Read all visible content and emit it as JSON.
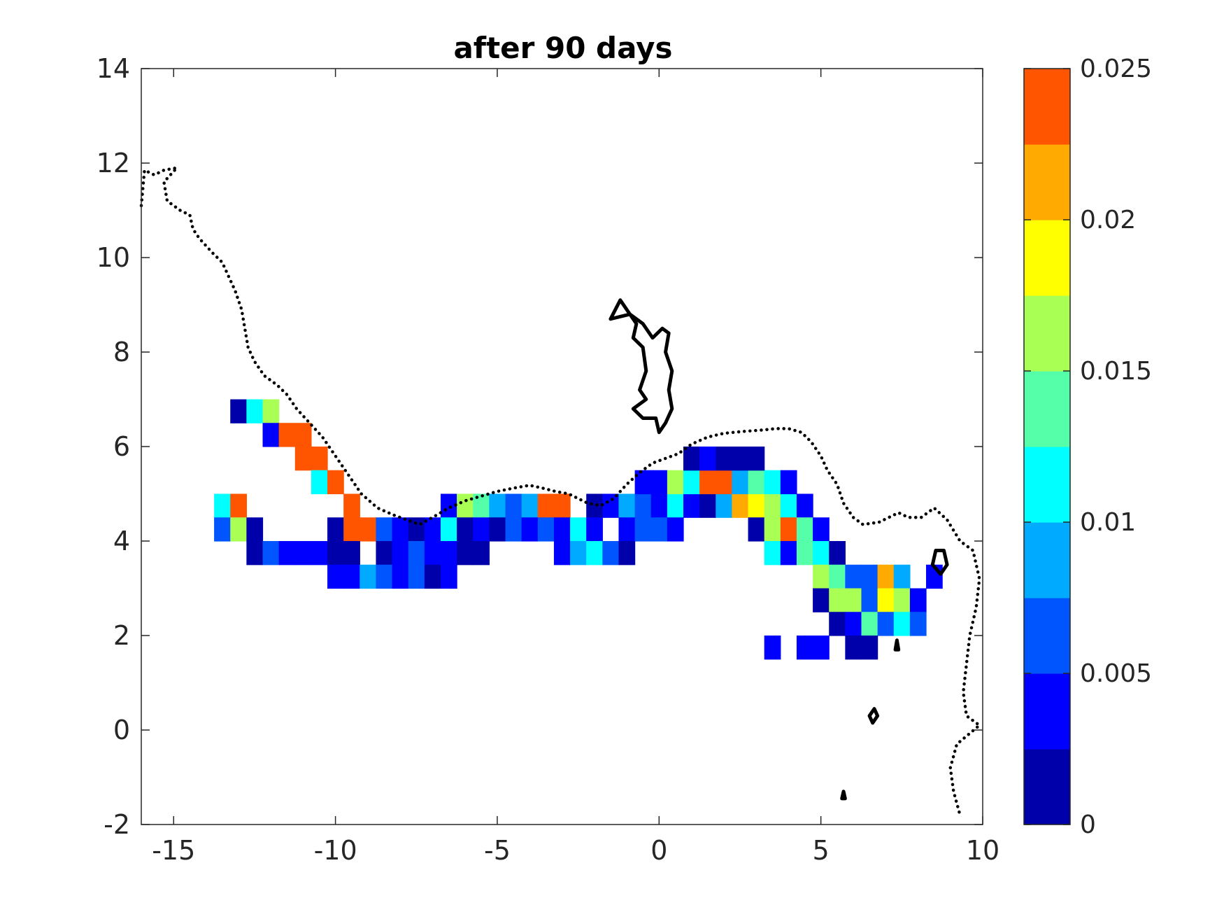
{
  "chart_data": {
    "type": "heatmap",
    "title": "after 90 days",
    "xlabel": "",
    "ylabel": "",
    "xlim": [
      -16,
      10
    ],
    "ylim": [
      -2,
      14
    ],
    "x_ticks": [
      "-15",
      "-10",
      "-5",
      "0",
      "5",
      "10"
    ],
    "y_ticks": [
      "-2",
      "0",
      "2",
      "4",
      "6",
      "8",
      "10",
      "12",
      "14"
    ],
    "cell_size": 0.5,
    "colormap": {
      "levels": [
        "#0000aa",
        "#0000ff",
        "#0055ff",
        "#00aaff",
        "#00ffff",
        "#55ffaa",
        "#aaff55",
        "#ffff00",
        "#ffaa00",
        "#ff5500"
      ],
      "range": [
        0,
        0.025
      ],
      "tick_labels": [
        "0",
        "0.005",
        "0.01",
        "0.015",
        "0.02",
        "0.025"
      ]
    },
    "cells": [
      {
        "x": -13,
        "y": 6.75,
        "v": 0.001
      },
      {
        "x": -12.5,
        "y": 6.75,
        "v": 0.011
      },
      {
        "x": -12,
        "y": 6.75,
        "v": 0.016
      },
      {
        "x": -12,
        "y": 6.25,
        "v": 0.004
      },
      {
        "x": -11.5,
        "y": 6.25,
        "v": 0.024
      },
      {
        "x": -11,
        "y": 6.25,
        "v": 0.024
      },
      {
        "x": -11,
        "y": 5.75,
        "v": 0.024
      },
      {
        "x": -10.5,
        "y": 5.75,
        "v": 0.024
      },
      {
        "x": -10.5,
        "y": 5.25,
        "v": 0.011
      },
      {
        "x": -10,
        "y": 5.25,
        "v": 0.024
      },
      {
        "x": -13.5,
        "y": 4.75,
        "v": 0.011
      },
      {
        "x": -13,
        "y": 4.75,
        "v": 0.024
      },
      {
        "x": -9.5,
        "y": 4.75,
        "v": 0.024
      },
      {
        "x": -6.5,
        "y": 4.75,
        "v": 0.004
      },
      {
        "x": -6,
        "y": 4.75,
        "v": 0.016
      },
      {
        "x": -5.5,
        "y": 4.75,
        "v": 0.014
      },
      {
        "x": -5,
        "y": 4.75,
        "v": 0.009
      },
      {
        "x": -4.5,
        "y": 4.75,
        "v": 0.006
      },
      {
        "x": -4,
        "y": 4.75,
        "v": 0.009
      },
      {
        "x": -3.5,
        "y": 4.75,
        "v": 0.024
      },
      {
        "x": -3,
        "y": 4.75,
        "v": 0.024
      },
      {
        "x": -2,
        "y": 4.75,
        "v": 0.001
      },
      {
        "x": -1.5,
        "y": 4.75,
        "v": 0.004
      },
      {
        "x": -1,
        "y": 4.75,
        "v": 0.009
      },
      {
        "x": -0.5,
        "y": 4.75,
        "v": 0.006
      },
      {
        "x": 0,
        "y": 4.75,
        "v": 0.004
      },
      {
        "x": 0.5,
        "y": 4.75,
        "v": 0.011
      },
      {
        "x": 1,
        "y": 4.75,
        "v": 0.004
      },
      {
        "x": 1.5,
        "y": 4.75,
        "v": 0.001
      },
      {
        "x": 2,
        "y": 4.75,
        "v": 0.009
      },
      {
        "x": 2.5,
        "y": 4.75,
        "v": 0.021
      },
      {
        "x": 3,
        "y": 4.75,
        "v": 0.019
      },
      {
        "x": 3.5,
        "y": 4.75,
        "v": 0.016
      },
      {
        "x": 4,
        "y": 4.75,
        "v": 0.011
      },
      {
        "x": 4.5,
        "y": 4.75,
        "v": 0.004
      },
      {
        "x": -13.5,
        "y": 4.25,
        "v": 0.006
      },
      {
        "x": -13,
        "y": 4.25,
        "v": 0.016
      },
      {
        "x": -12.5,
        "y": 4.25,
        "v": 0.001
      },
      {
        "x": -10,
        "y": 4.25,
        "v": 0.001
      },
      {
        "x": -9.5,
        "y": 4.25,
        "v": 0.024
      },
      {
        "x": -9,
        "y": 4.25,
        "v": 0.024
      },
      {
        "x": -8.5,
        "y": 4.25,
        "v": 0.006
      },
      {
        "x": -8,
        "y": 4.25,
        "v": 0.004
      },
      {
        "x": -7.5,
        "y": 4.25,
        "v": 0.001
      },
      {
        "x": -7,
        "y": 4.25,
        "v": 0.004
      },
      {
        "x": -6.5,
        "y": 4.25,
        "v": 0.011
      },
      {
        "x": -6,
        "y": 4.25,
        "v": 0.001
      },
      {
        "x": -5.5,
        "y": 4.25,
        "v": 0.004
      },
      {
        "x": -5,
        "y": 4.25,
        "v": 0.001
      },
      {
        "x": -4.5,
        "y": 4.25,
        "v": 0.006
      },
      {
        "x": -4,
        "y": 4.25,
        "v": 0.004
      },
      {
        "x": -3.5,
        "y": 4.25,
        "v": 0.006
      },
      {
        "x": -3,
        "y": 4.25,
        "v": 0.004
      },
      {
        "x": -2.5,
        "y": 4.25,
        "v": 0.011
      },
      {
        "x": -2,
        "y": 4.25,
        "v": 0.004
      },
      {
        "x": -1,
        "y": 4.25,
        "v": 0.004
      },
      {
        "x": -0.5,
        "y": 4.25,
        "v": 0.006
      },
      {
        "x": 0,
        "y": 4.25,
        "v": 0.006
      },
      {
        "x": 0.5,
        "y": 4.25,
        "v": 0.004
      },
      {
        "x": 3,
        "y": 4.25,
        "v": 0.001
      },
      {
        "x": 3.5,
        "y": 4.25,
        "v": 0.016
      },
      {
        "x": 4,
        "y": 4.25,
        "v": 0.024
      },
      {
        "x": 4.5,
        "y": 4.25,
        "v": 0.014
      },
      {
        "x": 5,
        "y": 4.25,
        "v": 0.004
      },
      {
        "x": -12.5,
        "y": 3.75,
        "v": 0.001
      },
      {
        "x": -12,
        "y": 3.75,
        "v": 0.006
      },
      {
        "x": -11.5,
        "y": 3.75,
        "v": 0.004
      },
      {
        "x": -11,
        "y": 3.75,
        "v": 0.004
      },
      {
        "x": -10.5,
        "y": 3.75,
        "v": 0.004
      },
      {
        "x": -10,
        "y": 3.75,
        "v": 0.001
      },
      {
        "x": -9.5,
        "y": 3.75,
        "v": 0.001
      },
      {
        "x": -8.5,
        "y": 3.75,
        "v": 0.001
      },
      {
        "x": -8,
        "y": 3.75,
        "v": 0.004
      },
      {
        "x": -7.5,
        "y": 3.75,
        "v": 0.006
      },
      {
        "x": -7,
        "y": 3.75,
        "v": 0.004
      },
      {
        "x": -6.5,
        "y": 3.75,
        "v": 0.004
      },
      {
        "x": -6,
        "y": 3.75,
        "v": 0.001
      },
      {
        "x": -5.5,
        "y": 3.75,
        "v": 0.001
      },
      {
        "x": -3,
        "y": 3.75,
        "v": 0.004
      },
      {
        "x": -2.5,
        "y": 3.75,
        "v": 0.009
      },
      {
        "x": -2,
        "y": 3.75,
        "v": 0.011
      },
      {
        "x": -1.5,
        "y": 3.75,
        "v": 0.006
      },
      {
        "x": -1,
        "y": 3.75,
        "v": 0.001
      },
      {
        "x": 3.5,
        "y": 3.75,
        "v": 0.011
      },
      {
        "x": 4,
        "y": 3.75,
        "v": 0.004
      },
      {
        "x": 4.5,
        "y": 3.75,
        "v": 0.014
      },
      {
        "x": 5,
        "y": 3.75,
        "v": 0.011
      },
      {
        "x": 5.5,
        "y": 3.75,
        "v": 0.001
      },
      {
        "x": -10,
        "y": 3.25,
        "v": 0.004
      },
      {
        "x": -9.5,
        "y": 3.25,
        "v": 0.004
      },
      {
        "x": -9,
        "y": 3.25,
        "v": 0.009
      },
      {
        "x": -8.5,
        "y": 3.25,
        "v": 0.006
      },
      {
        "x": -8,
        "y": 3.25,
        "v": 0.004
      },
      {
        "x": -7.5,
        "y": 3.25,
        "v": 0.006
      },
      {
        "x": -7,
        "y": 3.25,
        "v": 0.001
      },
      {
        "x": -6.5,
        "y": 3.25,
        "v": 0.004
      },
      {
        "x": 5,
        "y": 3.25,
        "v": 0.016
      },
      {
        "x": 5.5,
        "y": 3.25,
        "v": 0.014
      },
      {
        "x": 6,
        "y": 3.25,
        "v": 0.006
      },
      {
        "x": 6.5,
        "y": 3.25,
        "v": 0.006
      },
      {
        "x": 7,
        "y": 3.25,
        "v": 0.021
      },
      {
        "x": 7.5,
        "y": 3.25,
        "v": 0.009
      },
      {
        "x": 8.5,
        "y": 3.25,
        "v": 0.004
      },
      {
        "x": 5,
        "y": 2.75,
        "v": 0.001
      },
      {
        "x": 5.5,
        "y": 2.75,
        "v": 0.016
      },
      {
        "x": 6,
        "y": 2.75,
        "v": 0.016
      },
      {
        "x": 6.5,
        "y": 2.75,
        "v": 0.006
      },
      {
        "x": 7,
        "y": 2.75,
        "v": 0.019
      },
      {
        "x": 7.5,
        "y": 2.75,
        "v": 0.016
      },
      {
        "x": 8,
        "y": 2.75,
        "v": 0.004
      },
      {
        "x": 5.5,
        "y": 2.25,
        "v": 0.001
      },
      {
        "x": 6,
        "y": 2.25,
        "v": 0.004
      },
      {
        "x": 6.5,
        "y": 2.25,
        "v": 0.014
      },
      {
        "x": 7,
        "y": 2.25,
        "v": 0.006
      },
      {
        "x": 7.5,
        "y": 2.25,
        "v": 0.011
      },
      {
        "x": 8,
        "y": 2.25,
        "v": 0.006
      },
      {
        "x": 3.5,
        "y": 1.75,
        "v": 0.004
      },
      {
        "x": 4.5,
        "y": 1.75,
        "v": 0.004
      },
      {
        "x": 5,
        "y": 1.75,
        "v": 0.004
      },
      {
        "x": 6,
        "y": 1.75,
        "v": 0.001
      },
      {
        "x": 6.5,
        "y": 1.75,
        "v": 0.001
      },
      {
        "x": 0,
        "y": 5.25,
        "v": 0.004
      },
      {
        "x": 0.5,
        "y": 5.25,
        "v": 0.016
      },
      {
        "x": 1,
        "y": 5.25,
        "v": 0.011
      },
      {
        "x": 1.5,
        "y": 5.25,
        "v": 0.024
      },
      {
        "x": 2,
        "y": 5.25,
        "v": 0.024
      },
      {
        "x": 2.5,
        "y": 5.25,
        "v": 0.009
      },
      {
        "x": 3,
        "y": 5.25,
        "v": 0.014
      },
      {
        "x": 3.5,
        "y": 5.25,
        "v": 0.011
      },
      {
        "x": 4,
        "y": 5.25,
        "v": 0.004
      },
      {
        "x": -0.5,
        "y": 5.25,
        "v": 0.004
      },
      {
        "x": 1,
        "y": 5.75,
        "v": 0.001
      },
      {
        "x": 1.5,
        "y": 5.75,
        "v": 0.004
      },
      {
        "x": 2,
        "y": 5.75,
        "v": 0.001
      },
      {
        "x": 2.5,
        "y": 5.75,
        "v": 0.001
      },
      {
        "x": 3,
        "y": 5.75,
        "v": 0.001
      }
    ],
    "coastline_dotted": [
      [
        -16,
        11.1
      ],
      [
        -15.9,
        11.85
      ],
      [
        -15.6,
        11.75
      ],
      [
        -15.3,
        11.85
      ],
      [
        -14.9,
        11.9
      ],
      [
        -15.3,
        11.6
      ],
      [
        -15.2,
        11.2
      ],
      [
        -14.8,
        11.0
      ],
      [
        -14.5,
        10.9
      ],
      [
        -14.4,
        10.6
      ],
      [
        -14.2,
        10.4
      ],
      [
        -13.8,
        10.1
      ],
      [
        -13.5,
        9.9
      ],
      [
        -13.3,
        9.6
      ],
      [
        -13.1,
        9.3
      ],
      [
        -12.9,
        8.9
      ],
      [
        -12.8,
        8.5
      ],
      [
        -12.7,
        8.1
      ],
      [
        -12.5,
        7.8
      ],
      [
        -12.2,
        7.5
      ],
      [
        -11.8,
        7.3
      ],
      [
        -11.5,
        7.1
      ],
      [
        -11.2,
        6.8
      ],
      [
        -10.8,
        6.5
      ],
      [
        -10.4,
        6.2
      ],
      [
        -10.0,
        5.8
      ],
      [
        -9.6,
        5.4
      ],
      [
        -9.2,
        5.0
      ],
      [
        -8.7,
        4.7
      ],
      [
        -8.2,
        4.55
      ],
      [
        -7.8,
        4.45
      ],
      [
        -7.4,
        4.35
      ],
      [
        -7.0,
        4.5
      ],
      [
        -6.5,
        4.7
      ],
      [
        -6.0,
        4.85
      ],
      [
        -5.5,
        4.95
      ],
      [
        -5.0,
        5.05
      ],
      [
        -4.5,
        5.12
      ],
      [
        -4.0,
        5.18
      ],
      [
        -3.6,
        5.12
      ],
      [
        -3.2,
        5.05
      ],
      [
        -2.8,
        5.0
      ],
      [
        -2.5,
        4.9
      ],
      [
        -2.2,
        4.8
      ],
      [
        -1.8,
        4.75
      ],
      [
        -1.4,
        4.9
      ],
      [
        -1.0,
        5.2
      ],
      [
        -0.6,
        5.45
      ],
      [
        -0.2,
        5.65
      ],
      [
        0.2,
        5.75
      ],
      [
        0.6,
        5.85
      ],
      [
        1.0,
        6.05
      ],
      [
        1.5,
        6.2
      ],
      [
        2.0,
        6.28
      ],
      [
        2.6,
        6.32
      ],
      [
        3.2,
        6.35
      ],
      [
        3.6,
        6.38
      ],
      [
        4.0,
        6.38
      ],
      [
        4.4,
        6.3
      ],
      [
        4.7,
        6.1
      ],
      [
        5.0,
        5.8
      ],
      [
        5.2,
        5.5
      ],
      [
        5.5,
        5.2
      ],
      [
        5.7,
        4.8
      ],
      [
        6.0,
        4.5
      ],
      [
        6.3,
        4.35
      ],
      [
        6.8,
        4.4
      ],
      [
        7.1,
        4.5
      ],
      [
        7.4,
        4.6
      ],
      [
        7.7,
        4.5
      ],
      [
        8.1,
        4.5
      ],
      [
        8.5,
        4.7
      ],
      [
        8.9,
        4.45
      ],
      [
        9.3,
        4.0
      ],
      [
        9.7,
        3.8
      ],
      [
        9.9,
        3.2
      ],
      [
        9.8,
        2.6
      ],
      [
        9.6,
        2.0
      ],
      [
        9.5,
        1.4
      ],
      [
        9.4,
        0.8
      ],
      [
        9.5,
        0.3
      ],
      [
        9.9,
        0.1
      ],
      [
        9.2,
        -0.3
      ],
      [
        9.0,
        -0.8
      ],
      [
        9.1,
        -1.3
      ],
      [
        9.3,
        -1.8
      ]
    ],
    "coastline_solid": [
      [
        [
          -1.5,
          8.7
        ],
        [
          -1.2,
          9.1
        ],
        [
          -1.0,
          8.9
        ],
        [
          -0.7,
          8.6
        ],
        [
          -0.8,
          8.3
        ],
        [
          -0.5,
          8.1
        ],
        [
          -0.4,
          7.6
        ],
        [
          -0.6,
          7.2
        ],
        [
          -0.4,
          7.0
        ],
        [
          -0.8,
          6.8
        ],
        [
          -0.5,
          6.6
        ],
        [
          -0.1,
          6.6
        ],
        [
          0.0,
          6.3
        ],
        [
          0.2,
          6.5
        ],
        [
          0.4,
          6.8
        ],
        [
          0.3,
          7.2
        ],
        [
          0.4,
          7.6
        ],
        [
          0.2,
          8.0
        ],
        [
          0.3,
          8.4
        ],
        [
          0.1,
          8.5
        ],
        [
          -0.2,
          8.3
        ],
        [
          -0.5,
          8.6
        ],
        [
          -0.9,
          8.8
        ],
        [
          -1.5,
          8.7
        ]
      ],
      [
        [
          8.45,
          3.5
        ],
        [
          8.55,
          3.8
        ],
        [
          8.8,
          3.8
        ],
        [
          8.9,
          3.5
        ],
        [
          8.7,
          3.3
        ],
        [
          8.45,
          3.5
        ]
      ],
      [
        [
          6.5,
          0.3
        ],
        [
          6.65,
          0.45
        ],
        [
          6.75,
          0.3
        ],
        [
          6.6,
          0.15
        ],
        [
          6.5,
          0.3
        ]
      ],
      [
        [
          7.3,
          1.7
        ],
        [
          7.35,
          1.9
        ],
        [
          7.4,
          1.7
        ],
        [
          7.3,
          1.7
        ]
      ],
      [
        [
          5.65,
          -1.45
        ],
        [
          5.7,
          -1.3
        ],
        [
          5.75,
          -1.45
        ],
        [
          5.65,
          -1.45
        ]
      ]
    ]
  }
}
